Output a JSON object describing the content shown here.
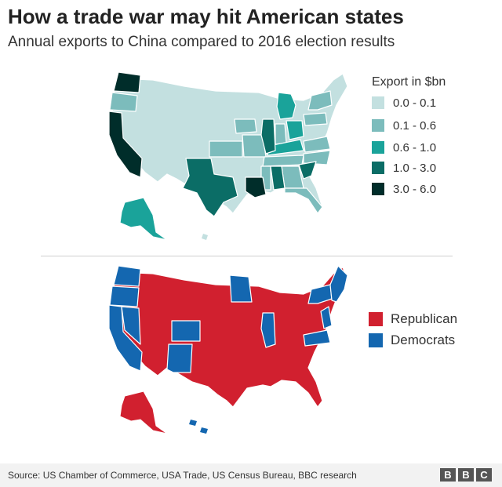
{
  "header": {
    "title": "How a trade war may hit American states",
    "subtitle": "Annual exports to China compared to 2016 election results"
  },
  "export_legend": {
    "title": "Export in $bn",
    "items": [
      {
        "label": "0.0 - 0.1",
        "color": "#c3e0e0"
      },
      {
        "label": "0.1 - 0.6",
        "color": "#7cbcbc"
      },
      {
        "label": "0.6 - 1.0",
        "color": "#1aa39a"
      },
      {
        "label": "1.0 - 3.0",
        "color": "#0b6d66"
      },
      {
        "label": "3.0 - 6.0",
        "color": "#002d2a"
      }
    ]
  },
  "party_legend": {
    "items": [
      {
        "label": "Republican",
        "color": "#d1202f"
      },
      {
        "label": "Democrats",
        "color": "#1467b0"
      }
    ]
  },
  "footer": {
    "source": "Source: US Chamber of Commerce, USA Trade, US Census Bureau, BBC research",
    "logo": [
      "B",
      "B",
      "C"
    ]
  },
  "map_data": {
    "export_bins_by_state": {
      "WA": 4,
      "OR": 1,
      "CA": 4,
      "TX": 3,
      "LA": 4,
      "IL": 3,
      "MI": 2,
      "OH": 2,
      "SC": 3,
      "AL": 3,
      "AK": 2,
      "NY": 1,
      "PA": 1,
      "GA": 1,
      "KY": 2,
      "TN": 1,
      "NC": 1,
      "IN": 1,
      "WI": 0,
      "MN": 0,
      "IA": 1,
      "KS": 1,
      "MO": 1,
      "MS": 1,
      "FL": 1,
      "VA": 1
    },
    "election_2016": {
      "Democrats": [
        "WA",
        "OR",
        "CA",
        "NV",
        "CO",
        "NM",
        "MN",
        "IL",
        "VA",
        "NY",
        "ME",
        "VT",
        "NH",
        "MA",
        "CT",
        "RI",
        "NJ",
        "DE",
        "MD",
        "HI"
      ],
      "Republican": [
        "ID",
        "MT",
        "WY",
        "UT",
        "AZ",
        "ND",
        "SD",
        "NE",
        "KS",
        "OK",
        "TX",
        "IA",
        "MO",
        "AR",
        "LA",
        "WI",
        "MI",
        "IN",
        "OH",
        "KY",
        "TN",
        "MS",
        "AL",
        "GA",
        "FL",
        "SC",
        "NC",
        "WV",
        "PA",
        "AK"
      ]
    }
  }
}
